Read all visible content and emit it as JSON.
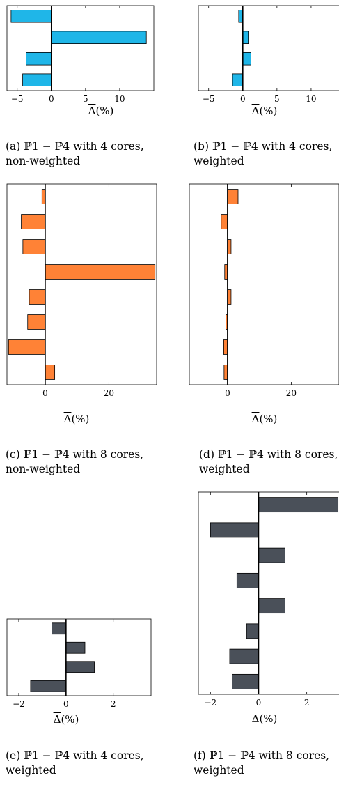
{
  "axis_xlabel_symbol": "Δ",
  "axis_xlabel_unit": "(%)",
  "colors": {
    "blue": "#1fb6e8",
    "orange": "#ff8236",
    "gray": "#4a5059"
  },
  "chart_data": [
    {
      "id": "a",
      "type": "bar",
      "orientation": "horizontal",
      "caption": "(a) ℙ1 − ℙ4 with 4 cores, non-weighted",
      "xlim": [
        -6.5,
        15
      ],
      "xticks": [
        -5,
        0,
        5,
        10
      ],
      "values": [
        -5.9,
        13.9,
        -3.7,
        -4.2
      ],
      "color": "blue",
      "xlabel": "Δ (%)"
    },
    {
      "id": "b",
      "type": "bar",
      "orientation": "horizontal",
      "caption": "(b) ℙ1 − ℙ4 with 4 cores, weighted",
      "xlim": [
        -6.5,
        15
      ],
      "xticks": [
        -5,
        0,
        5,
        10
      ],
      "values": [
        -0.6,
        0.8,
        1.2,
        -1.5
      ],
      "color": "blue",
      "xlabel": "Δ (%)"
    },
    {
      "id": "c",
      "type": "bar",
      "orientation": "horizontal",
      "caption": "(c) ℙ1 − ℙ4 with 8 cores, non-weighted",
      "xlim": [
        -12,
        35
      ],
      "xticks": [
        0,
        20
      ],
      "values": [
        -1,
        -7.5,
        -7,
        34.5,
        -5,
        -5.5,
        -11.5,
        3
      ],
      "color": "orange",
      "xlabel": "Δ (%)"
    },
    {
      "id": "d",
      "type": "bar",
      "orientation": "horizontal",
      "caption": "(d) ℙ1 − ℙ4 with 8 cores, weighted",
      "xlim": [
        -12,
        35
      ],
      "xticks": [
        0,
        20
      ],
      "values": [
        3.3,
        -2,
        1.1,
        -0.9,
        1.1,
        -0.5,
        -1.2,
        -1.1
      ],
      "color": "orange",
      "xlabel": "Δ (%)"
    },
    {
      "id": "e",
      "type": "bar",
      "orientation": "horizontal",
      "caption": "(e) ℙ1 − ℙ4 with 4 cores, weighted",
      "xlim": [
        -2.5,
        3.6
      ],
      "xticks": [
        -2,
        0,
        2
      ],
      "values": [
        -0.6,
        0.8,
        1.2,
        -1.5
      ],
      "color": "gray",
      "xlabel": "Δ (%)"
    },
    {
      "id": "f",
      "type": "bar",
      "orientation": "horizontal",
      "caption": "(f) ℙ1 − ℙ4 with 8 cores, weighted",
      "xlim": [
        -2.5,
        3.6
      ],
      "xticks": [
        -2,
        0,
        2
      ],
      "values": [
        3.3,
        -2,
        1.1,
        -0.9,
        1.1,
        -0.5,
        -1.2,
        -1.1
      ],
      "color": "gray",
      "xlabel": "Δ (%)"
    }
  ]
}
